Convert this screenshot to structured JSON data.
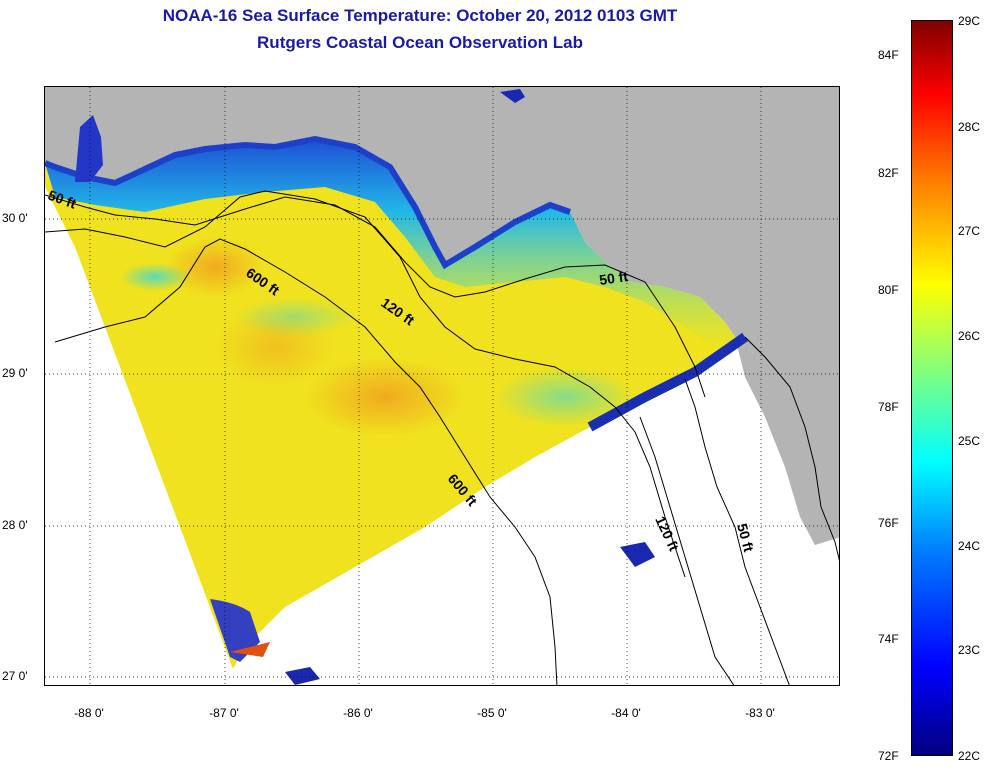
{
  "title": {
    "line1": "NOAA-16 Sea Surface Temperature:  October 20, 2012 0103 GMT",
    "line2": "Rutgers Coastal Ocean Observation Lab"
  },
  "map": {
    "lat_labels": [
      "30 0'",
      "29 0'",
      "28 0'",
      "27 0'"
    ],
    "lon_labels": [
      "-88 0'",
      "-87 0'",
      "-86 0'",
      "-85 0'",
      "-84 0'",
      "-83 0'"
    ],
    "depth_contours": {
      "fifty_west": "50 ft",
      "fifty_east": "50 ft",
      "fifty_south": "50 ft",
      "onetwenty_north": "120 ft",
      "onetwenty_south": "120 ft",
      "sixhundred_north": "600 ft",
      "sixhundred_south": "600 ft"
    },
    "colors": {
      "land": "#b4b4b4",
      "no_data": "#ffffff",
      "warm_water": "#f2e21a",
      "cool_water": "#5fe8b0",
      "coastal_cold": "#1e4fd6"
    }
  },
  "colorbar": {
    "fahrenheit_labels": [
      "84F",
      "82F",
      "80F",
      "78F",
      "76F",
      "74F",
      "72F"
    ],
    "celsius_labels": [
      "29C",
      "28C",
      "27C",
      "26C",
      "25C",
      "24C",
      "23C",
      "22C"
    ],
    "range_celsius": [
      22,
      29
    ],
    "range_fahrenheit": [
      72,
      84.2
    ]
  }
}
